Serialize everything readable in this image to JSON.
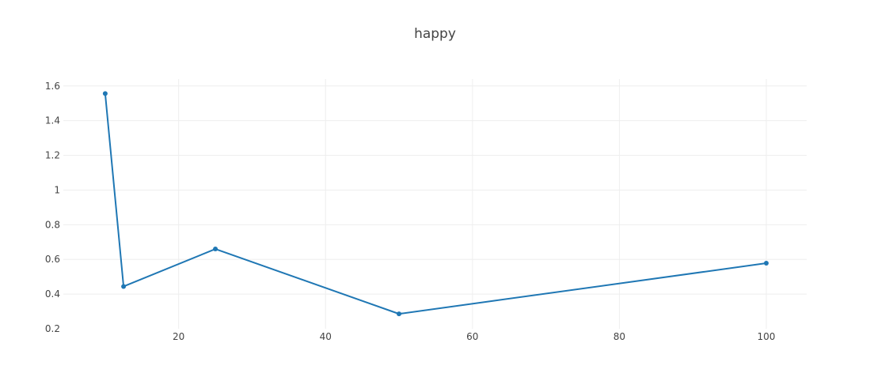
{
  "chart_data": {
    "type": "line",
    "title": "happy",
    "xlabel": "",
    "ylabel": "",
    "x": [
      10,
      12.5,
      25,
      50,
      100
    ],
    "series": [
      {
        "values": [
          1.556,
          0.444,
          0.66,
          0.286,
          0.578
        ],
        "color": "#1f77b4"
      }
    ],
    "xlim": [
      4.3,
      105.5
    ],
    "ylim": [
      0.2,
      1.64
    ],
    "xticks": [
      20,
      40,
      60,
      80,
      100
    ],
    "yticks": [
      0.2,
      0.4,
      0.6,
      0.8,
      1,
      1.2,
      1.4,
      1.6
    ],
    "grid": true,
    "gridColor": "#eeeeee",
    "legend": "none"
  }
}
